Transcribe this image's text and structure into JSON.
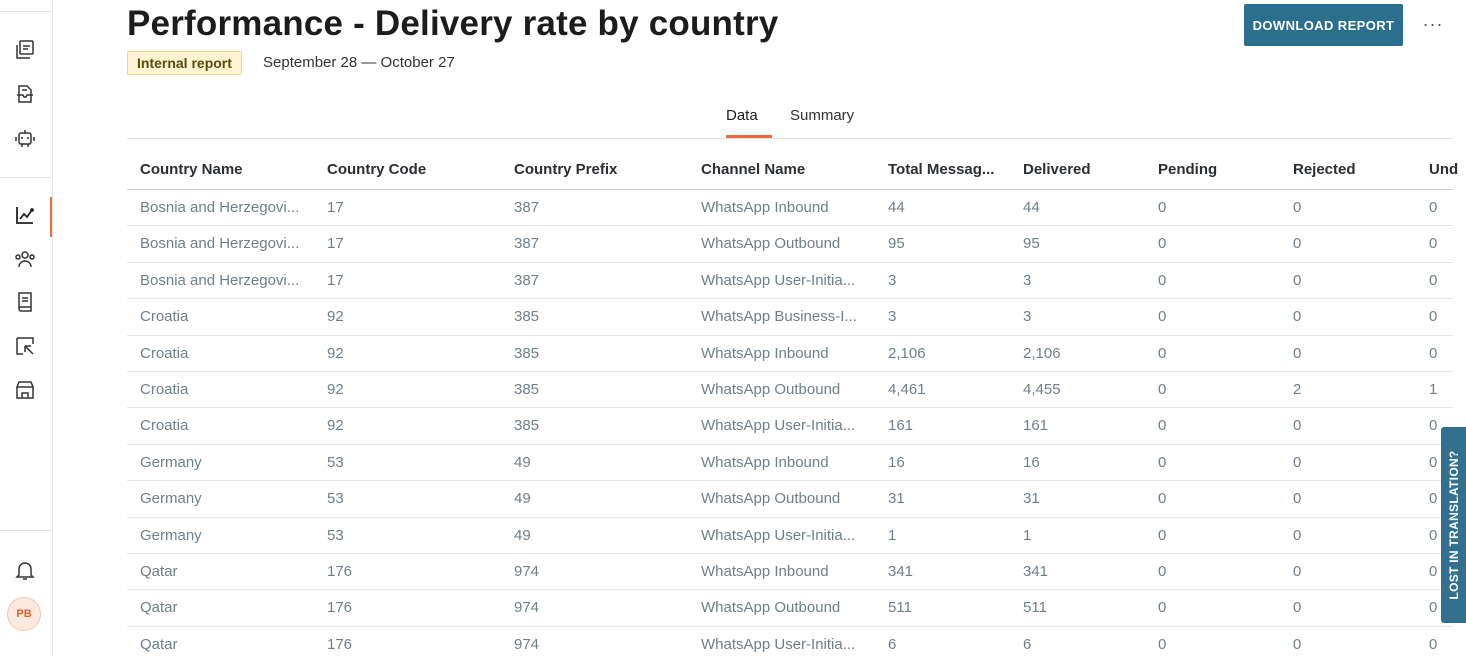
{
  "header": {
    "title": "Performance - Delivery rate by country",
    "badge": "Internal report",
    "date_range": "September 28 — October 27",
    "download_label": "DOWNLOAD REPORT",
    "more_label": "···"
  },
  "tabs": [
    {
      "label": "Data",
      "active": true
    },
    {
      "label": "Summary",
      "active": false
    }
  ],
  "sidebar": {
    "icons": [
      "conversations-icon",
      "inbox-icon",
      "bot-icon",
      "analytics-icon",
      "people-icon",
      "book-icon",
      "export-icon",
      "store-icon"
    ],
    "active": "analytics-icon",
    "bell": "bell-icon",
    "avatar_initials": "PB",
    "accent": "#ef6c3a"
  },
  "table": {
    "columns": [
      "Country Name",
      "Country Code",
      "Country Prefix",
      "Channel Name",
      "Total Messag...",
      "Delivered",
      "Pending",
      "Rejected",
      "Und"
    ],
    "rows": [
      [
        "Bosnia and Herzegovi...",
        "17",
        "387",
        "WhatsApp Inbound",
        "44",
        "44",
        "0",
        "0",
        "0"
      ],
      [
        "Bosnia and Herzegovi...",
        "17",
        "387",
        "WhatsApp Outbound",
        "95",
        "95",
        "0",
        "0",
        "0"
      ],
      [
        "Bosnia and Herzegovi...",
        "17",
        "387",
        "WhatsApp User-Initia...",
        "3",
        "3",
        "0",
        "0",
        "0"
      ],
      [
        "Croatia",
        "92",
        "385",
        "WhatsApp Business-I...",
        "3",
        "3",
        "0",
        "0",
        "0"
      ],
      [
        "Croatia",
        "92",
        "385",
        "WhatsApp Inbound",
        "2,106",
        "2,106",
        "0",
        "0",
        "0"
      ],
      [
        "Croatia",
        "92",
        "385",
        "WhatsApp Outbound",
        "4,461",
        "4,455",
        "0",
        "2",
        "1"
      ],
      [
        "Croatia",
        "92",
        "385",
        "WhatsApp User-Initia...",
        "161",
        "161",
        "0",
        "0",
        "0"
      ],
      [
        "Germany",
        "53",
        "49",
        "WhatsApp Inbound",
        "16",
        "16",
        "0",
        "0",
        "0"
      ],
      [
        "Germany",
        "53",
        "49",
        "WhatsApp Outbound",
        "31",
        "31",
        "0",
        "0",
        "0"
      ],
      [
        "Germany",
        "53",
        "49",
        "WhatsApp User-Initia...",
        "1",
        "1",
        "0",
        "0",
        "0"
      ],
      [
        "Qatar",
        "176",
        "974",
        "WhatsApp Inbound",
        "341",
        "341",
        "0",
        "0",
        "0"
      ],
      [
        "Qatar",
        "176",
        "974",
        "WhatsApp Outbound",
        "511",
        "511",
        "0",
        "0",
        "0"
      ],
      [
        "Qatar",
        "176",
        "974",
        "WhatsApp User-Initia...",
        "6",
        "6",
        "0",
        "0",
        "0"
      ]
    ]
  },
  "side_tab": {
    "label": "LOST IN TRANSLATION?",
    "color": "#336f8f"
  },
  "colors": {
    "primary_button": "#2b6f8e",
    "badge_bg": "#fff4d2"
  }
}
